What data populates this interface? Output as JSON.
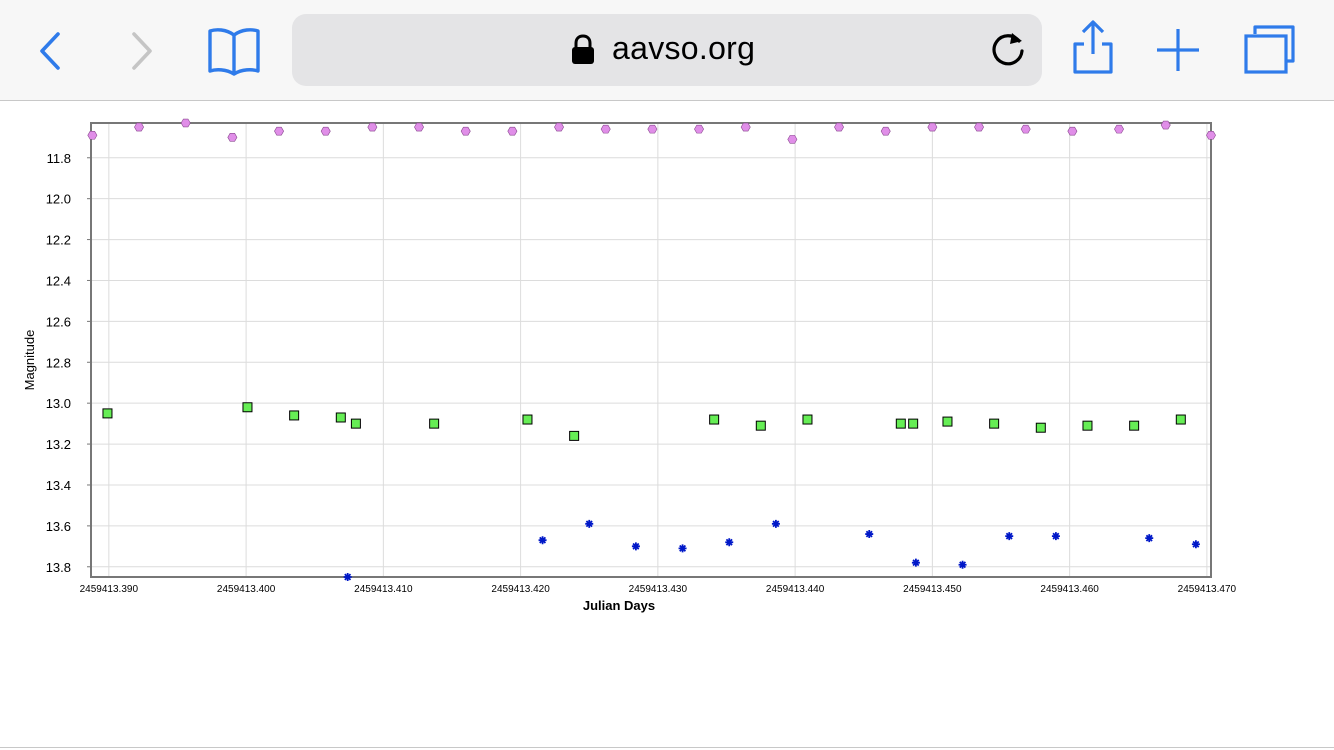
{
  "browser": {
    "url": "aavso.org",
    "icons": [
      "back-icon",
      "forward-icon",
      "bookmarks-icon",
      "lock-icon",
      "reload-icon",
      "share-icon",
      "new-tab-icon",
      "tabs-icon"
    ],
    "accent_color": "#2f7bea",
    "disabled_color": "#c5c5c5"
  },
  "chart_data": {
    "type": "scatter",
    "title": "",
    "xlabel": "Julian Days",
    "ylabel": "Magnitude",
    "xlim": [
      2459413.3887,
      2459413.4703
    ],
    "ylim": [
      13.85,
      11.63
    ],
    "y_inverted": true,
    "grid": true,
    "x_ticks": [
      2459413.39,
      2459413.4,
      2459413.41,
      2459413.42,
      2459413.43,
      2459413.44,
      2459413.45,
      2459413.46,
      2459413.47
    ],
    "x_tick_labels": [
      "2459413.390",
      "2459413.400",
      "2459413.410",
      "2459413.420",
      "2459413.430",
      "2459413.440",
      "2459413.450",
      "2459413.460",
      "2459413.470"
    ],
    "y_ticks": [
      11.8,
      12.0,
      12.2,
      12.4,
      12.6,
      12.8,
      13.0,
      13.2,
      13.4,
      13.6,
      13.8
    ],
    "y_tick_labels": [
      "11.8",
      "12.0",
      "12.2",
      "12.4",
      "12.6",
      "12.8",
      "13.0",
      "13.2",
      "13.4",
      "13.6",
      "13.8"
    ],
    "series": [
      {
        "marker": "hexagon",
        "color": "#e08ee8",
        "stroke": "#8a4a90",
        "points": [
          [
            2459413.3888,
            11.69
          ],
          [
            2459413.3922,
            11.65
          ],
          [
            2459413.3956,
            11.63
          ],
          [
            2459413.399,
            11.7
          ],
          [
            2459413.4024,
            11.67
          ],
          [
            2459413.4058,
            11.67
          ],
          [
            2459413.4092,
            11.65
          ],
          [
            2459413.4126,
            11.65
          ],
          [
            2459413.416,
            11.67
          ],
          [
            2459413.4194,
            11.67
          ],
          [
            2459413.4228,
            11.65
          ],
          [
            2459413.4262,
            11.66
          ],
          [
            2459413.4296,
            11.66
          ],
          [
            2459413.433,
            11.66
          ],
          [
            2459413.4364,
            11.65
          ],
          [
            2459413.4398,
            11.71
          ],
          [
            2459413.4432,
            11.65
          ],
          [
            2459413.4466,
            11.67
          ],
          [
            2459413.45,
            11.65
          ],
          [
            2459413.4534,
            11.65
          ],
          [
            2459413.4568,
            11.66
          ],
          [
            2459413.4602,
            11.67
          ],
          [
            2459413.4636,
            11.66
          ],
          [
            2459413.467,
            11.64
          ],
          [
            2459413.4703,
            11.69
          ]
        ]
      },
      {
        "marker": "square",
        "color": "#66ee55",
        "stroke": "#000000",
        "points": [
          [
            2459413.3899,
            13.05
          ],
          [
            2459413.4001,
            13.02
          ],
          [
            2459413.4035,
            13.06
          ],
          [
            2459413.4069,
            13.07
          ],
          [
            2459413.408,
            13.1
          ],
          [
            2459413.4137,
            13.1
          ],
          [
            2459413.4205,
            13.08
          ],
          [
            2459413.4239,
            13.16
          ],
          [
            2459413.4341,
            13.08
          ],
          [
            2459413.4375,
            13.11
          ],
          [
            2459413.4409,
            13.08
          ],
          [
            2459413.4477,
            13.1
          ],
          [
            2459413.4486,
            13.1
          ],
          [
            2459413.4511,
            13.09
          ],
          [
            2459413.4545,
            13.1
          ],
          [
            2459413.4579,
            13.12
          ],
          [
            2459413.4613,
            13.11
          ],
          [
            2459413.4647,
            13.11
          ],
          [
            2459413.4681,
            13.08
          ]
        ]
      },
      {
        "marker": "asterisk",
        "color": "#0018c8",
        "stroke": "#0018c8",
        "points": [
          [
            2459413.4074,
            13.85
          ],
          [
            2459413.4216,
            13.67
          ],
          [
            2459413.425,
            13.59
          ],
          [
            2459413.4284,
            13.7
          ],
          [
            2459413.4318,
            13.71
          ],
          [
            2459413.4352,
            13.68
          ],
          [
            2459413.4386,
            13.59
          ],
          [
            2459413.4454,
            13.64
          ],
          [
            2459413.4488,
            13.78
          ],
          [
            2459413.4522,
            13.79
          ],
          [
            2459413.4556,
            13.65
          ],
          [
            2459413.459,
            13.65
          ],
          [
            2459413.4658,
            13.66
          ],
          [
            2459413.4692,
            13.69
          ]
        ]
      }
    ]
  }
}
